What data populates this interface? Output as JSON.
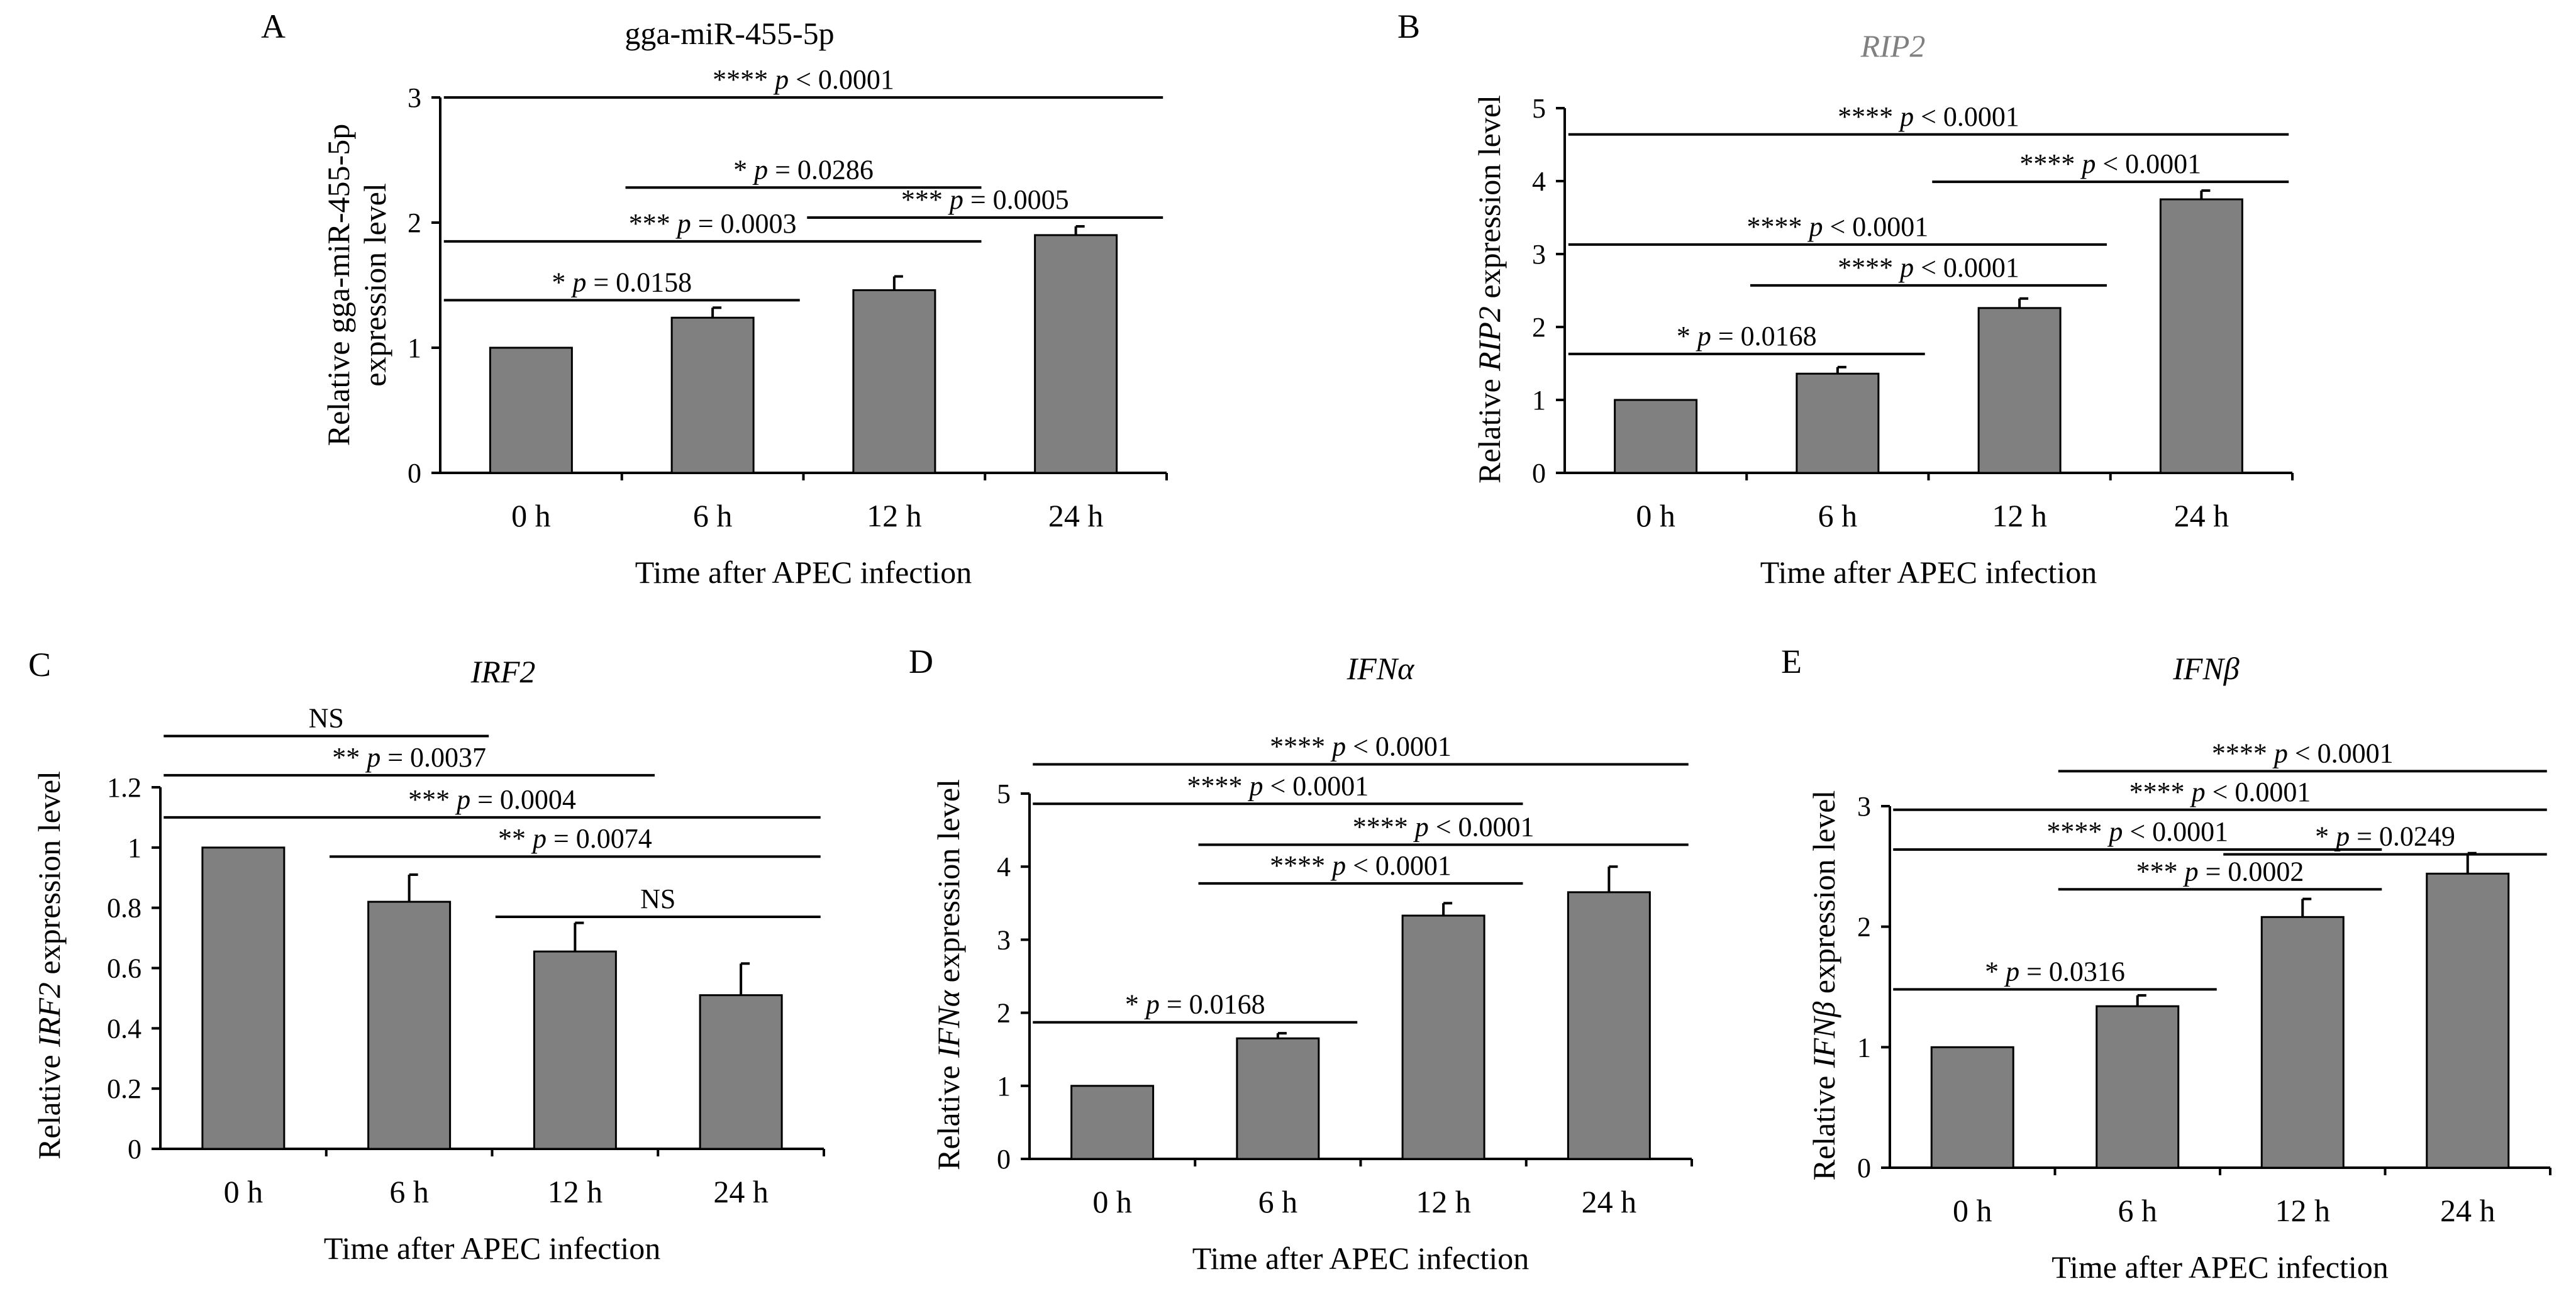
{
  "chart_data": [
    {
      "type": "bar",
      "panel": "A",
      "title": "gga-miR-455-5p",
      "title_italic": false,
      "title_color": "#000000",
      "ylabel": "Relative gga-miR-455-5p expression level",
      "xlabel": "Time after APEC infection",
      "categories": [
        "0 h",
        "6 h",
        "12 h",
        "24 h"
      ],
      "values": [
        1.0,
        1.24,
        1.46,
        1.9
      ],
      "errors": [
        0.0,
        0.08,
        0.11,
        0.07
      ],
      "ylim": [
        0,
        3
      ],
      "yticks": [
        "0",
        "1",
        "2",
        "3"
      ],
      "grid": false,
      "bar_color": "#808080",
      "comparisons": [
        {
          "from": 0,
          "to": 3,
          "level": 3.0,
          "stars": "****",
          "p": "< 0.0001"
        },
        {
          "from": 1,
          "to": 2,
          "level": 2.28,
          "stars": "*",
          "p": "= 0.0286"
        },
        {
          "from": 2,
          "to": 3,
          "level": 2.04,
          "stars": "***",
          "p": "= 0.0005"
        },
        {
          "from": 0,
          "to": 2,
          "level": 1.85,
          "stars": "***",
          "p": "= 0.0003"
        },
        {
          "from": 0,
          "to": 1,
          "level": 1.38,
          "stars": "*",
          "p": "= 0.0158"
        }
      ]
    },
    {
      "type": "bar",
      "panel": "B",
      "title": "RIP2",
      "title_italic": true,
      "title_color": "#808080",
      "ylabel_prefix": "Relative ",
      "ylabel_italic": "RIP2",
      "ylabel_suffix": " expression level",
      "xlabel": "Time after APEC infection",
      "categories": [
        "0 h",
        "6 h",
        "12 h",
        "24 h"
      ],
      "values": [
        1.0,
        1.36,
        2.26,
        3.75
      ],
      "errors": [
        0.0,
        0.09,
        0.13,
        0.12
      ],
      "ylim": [
        0,
        5
      ],
      "yticks": [
        "0",
        "1",
        "2",
        "3",
        "4",
        "5"
      ],
      "grid": false,
      "bar_color": "#808080",
      "comparisons": [
        {
          "from": 0,
          "to": 3,
          "level": 4.64,
          "stars": "****",
          "p": "< 0.0001"
        },
        {
          "from": 2,
          "to": 3,
          "level": 3.99,
          "stars": "****",
          "p": "< 0.0001"
        },
        {
          "from": 0,
          "to": 2,
          "level": 3.13,
          "stars": "****",
          "p": "< 0.0001"
        },
        {
          "from": 1,
          "to": 2,
          "level": 2.57,
          "stars": "****",
          "p": "< 0.0001"
        },
        {
          "from": 0,
          "to": 1,
          "level": 1.63,
          "stars": "*",
          "p": "= 0.0168"
        }
      ]
    },
    {
      "type": "bar",
      "panel": "C",
      "title": "IRF2",
      "title_italic": true,
      "title_color": "#000000",
      "ylabel_prefix": "Relative ",
      "ylabel_italic": "IRF2",
      "ylabel_suffix": " expression level",
      "xlabel": "Time after APEC infection",
      "categories": [
        "0 h",
        "6 h",
        "12 h",
        "24 h"
      ],
      "values": [
        1.0,
        0.82,
        0.655,
        0.51
      ],
      "errors": [
        0.0,
        0.09,
        0.095,
        0.105
      ],
      "ylim": [
        0,
        1.2
      ],
      "yticks": [
        "0",
        "0.2",
        "0.4",
        "0.6",
        "0.8",
        "1",
        "1.2"
      ],
      "grid": false,
      "bar_color": "#808080",
      "comparisons": [
        {
          "from": 0,
          "to": 1,
          "level": 1.37,
          "stars": "",
          "p": "",
          "label": "NS"
        },
        {
          "from": 0,
          "to": 2,
          "level": 1.24,
          "stars": "**",
          "p": "= 0.0037"
        },
        {
          "from": 0,
          "to": 3,
          "level": 1.1,
          "stars": "***",
          "p": "= 0.0004"
        },
        {
          "from": 1,
          "to": 3,
          "level": 0.97,
          "stars": "**",
          "p": "= 0.0074"
        },
        {
          "from": 2,
          "to": 3,
          "level": 0.77,
          "stars": "",
          "p": "",
          "label": "NS"
        }
      ]
    },
    {
      "type": "bar",
      "panel": "D",
      "title": "IFNα",
      "title_italic": true,
      "title_color": "#000000",
      "ylabel_prefix": "Relative ",
      "ylabel_italic": "IFNα",
      "ylabel_suffix": " expression level",
      "xlabel": "Time after APEC infection",
      "categories": [
        "0 h",
        "6 h",
        "12 h",
        "24 h"
      ],
      "values": [
        1.0,
        1.65,
        3.33,
        3.65
      ],
      "errors": [
        0.0,
        0.07,
        0.17,
        0.35
      ],
      "ylim": [
        0,
        5
      ],
      "yticks": [
        "0",
        "1",
        "2",
        "3",
        "4",
        "5"
      ],
      "grid": false,
      "bar_color": "#808080",
      "comparisons": [
        {
          "from": 0,
          "to": 3,
          "level": 5.4,
          "stars": "****",
          "p": "< 0.0001"
        },
        {
          "from": 0,
          "to": 2,
          "level": 4.86,
          "stars": "****",
          "p": "< 0.0001"
        },
        {
          "from": 1,
          "to": 3,
          "level": 4.3,
          "stars": "****",
          "p": "< 0.0001"
        },
        {
          "from": 1,
          "to": 2,
          "level": 3.77,
          "stars": "****",
          "p": "< 0.0001"
        },
        {
          "from": 0,
          "to": 1,
          "level": 1.87,
          "stars": "*",
          "p": "= 0.0168"
        }
      ]
    },
    {
      "type": "bar",
      "panel": "E",
      "title": "IFNβ",
      "title_italic": true,
      "title_color": "#000000",
      "ylabel_prefix": "Relative ",
      "ylabel_italic": "IFNβ",
      "ylabel_suffix": " expression level",
      "xlabel": "Time after APEC infection",
      "categories": [
        "0 h",
        "6 h",
        "12 h",
        "24 h"
      ],
      "values": [
        1.0,
        1.34,
        2.08,
        2.44
      ],
      "errors": [
        0.0,
        0.09,
        0.15,
        0.17
      ],
      "ylim": [
        0,
        3
      ],
      "yticks": [
        "0",
        "1",
        "2",
        "3"
      ],
      "grid": false,
      "bar_color": "#808080",
      "comparisons": [
        {
          "from": 1,
          "to": 3,
          "level": 3.29,
          "stars": "****",
          "p": "< 0.0001"
        },
        {
          "from": 0,
          "to": 3,
          "level": 2.97,
          "stars": "****",
          "p": "< 0.0001"
        },
        {
          "from": 0,
          "to": 2,
          "level": 2.64,
          "stars": "****",
          "p": "< 0.0001"
        },
        {
          "from": 2,
          "to": 3,
          "level": 2.6,
          "stars": "*",
          "p": "= 0.0249"
        },
        {
          "from": 1,
          "to": 2,
          "level": 2.31,
          "stars": "***",
          "p": "= 0.0002"
        },
        {
          "from": 0,
          "to": 1,
          "level": 1.48,
          "stars": "*",
          "p": "= 0.0316"
        }
      ]
    }
  ]
}
